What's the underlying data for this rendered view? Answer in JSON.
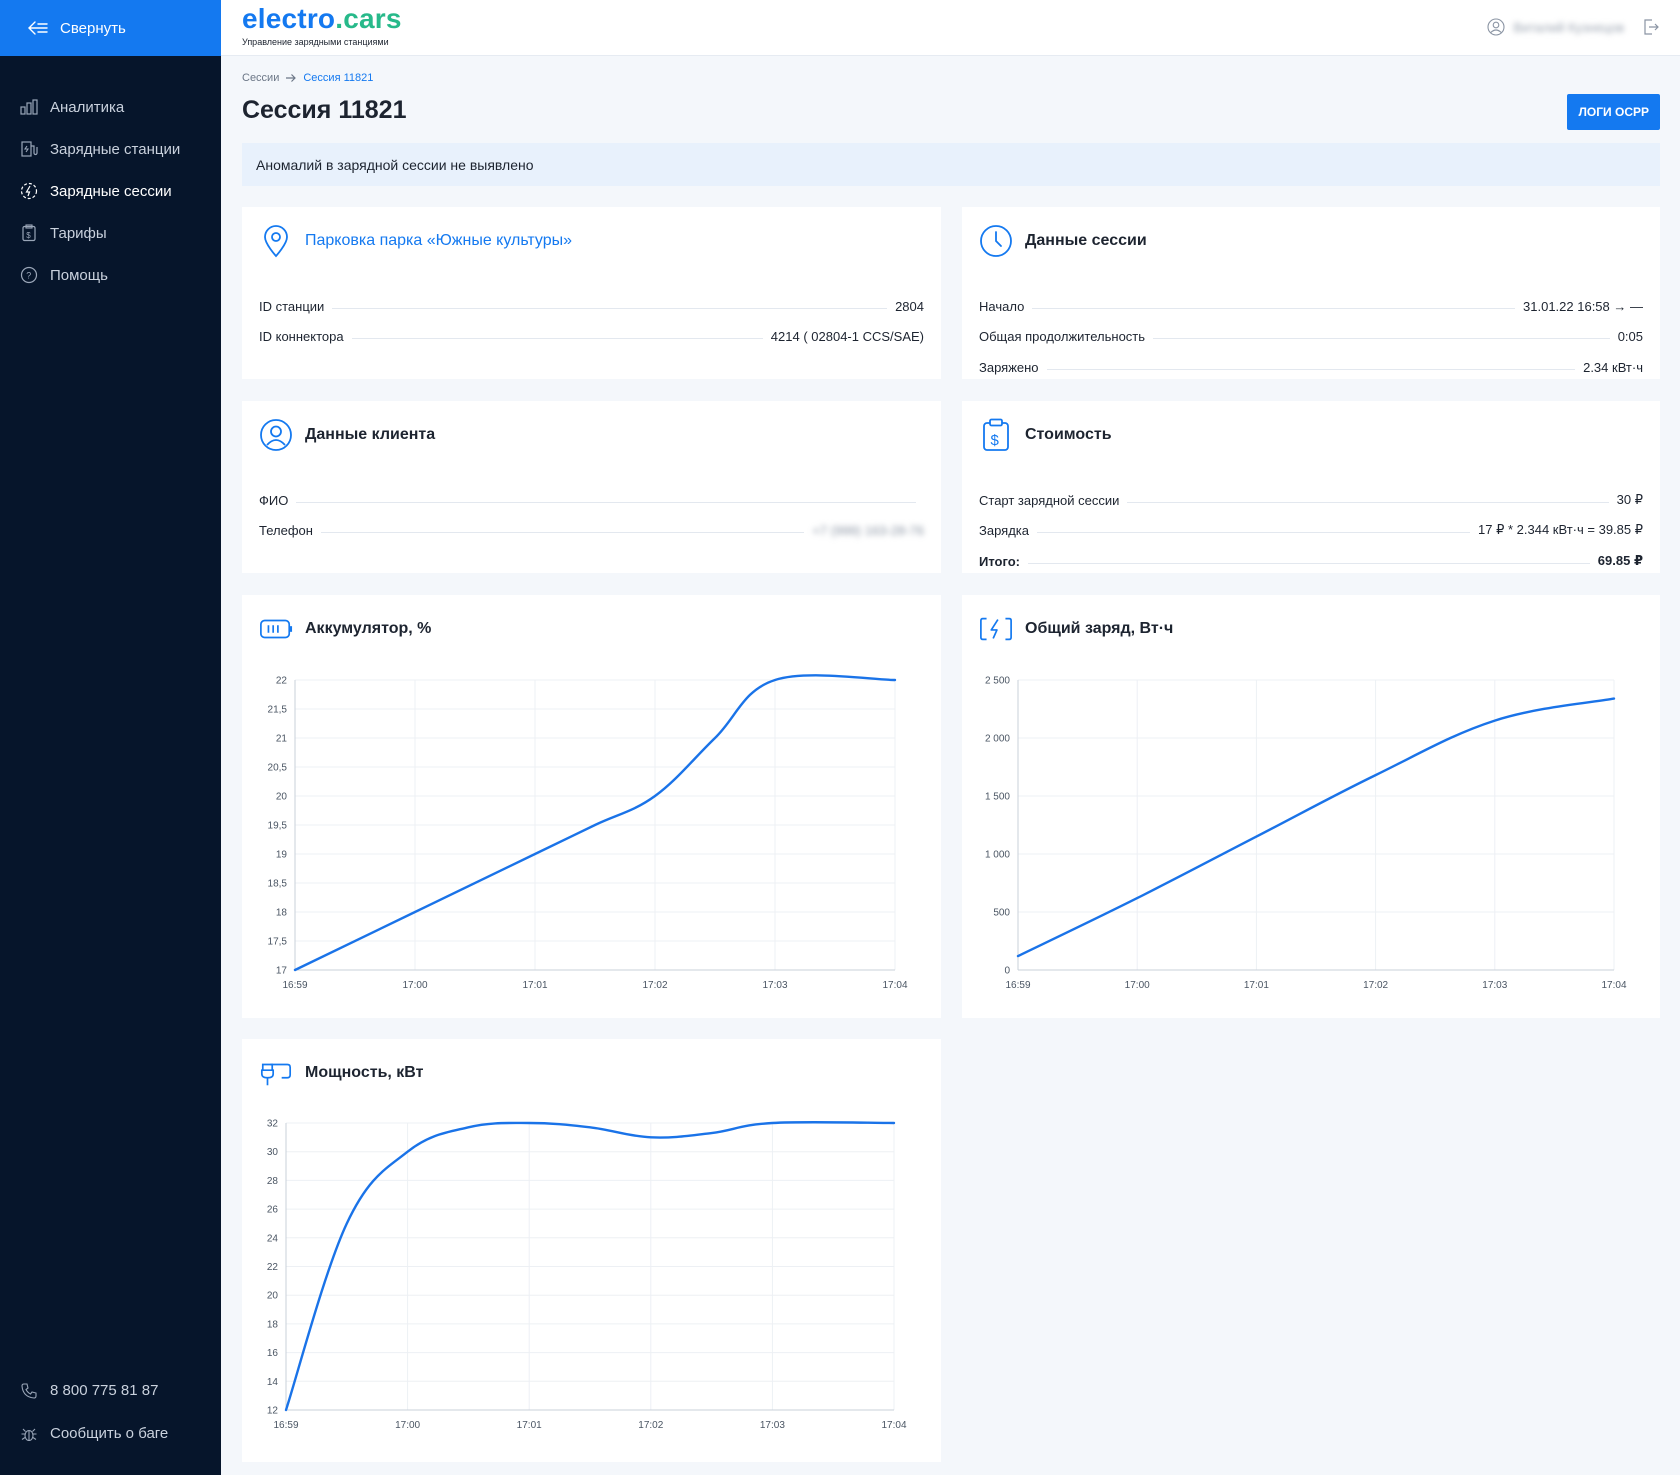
{
  "sidebar": {
    "collapse_label": "Свернуть",
    "items": [
      {
        "label": "Аналитика",
        "icon": "bar-chart-icon",
        "active": false
      },
      {
        "label": "Зарядные станции",
        "icon": "station-icon",
        "active": false
      },
      {
        "label": "Зарядные сессии",
        "icon": "session-icon",
        "active": true
      },
      {
        "label": "Тарифы",
        "icon": "tariff-icon",
        "active": false
      },
      {
        "label": "Помощь",
        "icon": "help-icon",
        "active": false
      }
    ],
    "phone": "8 800 775 81 87",
    "report_bug": "Сообщить о баге"
  },
  "header": {
    "logo_part1": "electro",
    "logo_part2": ".cars",
    "logo_subtitle": "Управление зарядными станциями",
    "user_name": "Виталий Кузнецов"
  },
  "breadcrumb": {
    "parent": "Сессии",
    "current": "Сессия 11821"
  },
  "page_title": "Сессия 11821",
  "ocpp_button": "ЛОГИ OCPP",
  "alert": "Аномалий в зарядной сессии не выявлено",
  "station_card": {
    "title": "Парковка парка «Южные культуры»",
    "rows": [
      {
        "label": "ID станции",
        "value": "2804"
      },
      {
        "label": "ID коннектора",
        "value": "4214 ( 02804-1 CCS/SAE)"
      }
    ]
  },
  "session_card": {
    "title": "Данные сессии",
    "rows": [
      {
        "label": "Начало",
        "value": "31.01.22 16:58 → —"
      },
      {
        "label": "Общая продолжительность",
        "value": "0:05"
      },
      {
        "label": "Заряжено",
        "value": "2.34 кВт·ч"
      }
    ]
  },
  "client_card": {
    "title": "Данные клиента",
    "rows": [
      {
        "label": "ФИО",
        "value": ""
      },
      {
        "label": "Телефон",
        "value": "+7 (999) 163-28-76"
      }
    ]
  },
  "cost_card": {
    "title": "Стоимость",
    "rows": [
      {
        "label": "Старт зарядной сессии",
        "value": "30 ₽"
      },
      {
        "label": "Зарядка",
        "value": "17 ₽ * 2.344 кВт·ч = 39.85 ₽"
      },
      {
        "label": "Итого:",
        "value": "69.85 ₽"
      }
    ]
  },
  "colors": {
    "accent": "#1479f0",
    "sidebar_bg": "#06152b",
    "logo_green": "#27b98a",
    "line": "#1a73e8"
  },
  "chart_data": [
    {
      "type": "line",
      "title": "Аккумулятор, %",
      "x": [
        "16:59",
        "17:00",
        "17:01",
        "17:02",
        "17:03",
        "17:04"
      ],
      "xlim": [
        "16:59",
        "17:04"
      ],
      "ylim": [
        17,
        22
      ],
      "y_ticks": [
        "22",
        "21,5",
        "21",
        "20,5",
        "20",
        "19,5",
        "19",
        "18,5",
        "18",
        "17,5",
        "17"
      ],
      "series": [
        {
          "points": [
            [
              "16:59",
              17.0
            ],
            [
              "17:00",
              18.0
            ],
            [
              "17:01",
              19.0
            ],
            [
              "17:01:30",
              19.5
            ],
            [
              "17:02",
              20.0
            ],
            [
              "17:02:30",
              21.0
            ],
            [
              "17:03",
              22.0
            ],
            [
              "17:04",
              22.0
            ]
          ]
        }
      ]
    },
    {
      "type": "line",
      "title": "Общий заряд, Вт·ч",
      "x": [
        "16:59",
        "17:00",
        "17:01",
        "17:02",
        "17:03",
        "17:04"
      ],
      "xlim": [
        "16:59",
        "17:04"
      ],
      "ylim": [
        0,
        2500
      ],
      "y_ticks": [
        "2 500",
        "2 000",
        "1 500",
        "1 000",
        "500",
        "0"
      ],
      "series": [
        {
          "points": [
            [
              "16:59",
              120
            ],
            [
              "17:00",
              620
            ],
            [
              "17:01",
              1150
            ],
            [
              "17:02",
              1680
            ],
            [
              "17:03",
              2150
            ],
            [
              "17:04",
              2340
            ]
          ]
        }
      ]
    },
    {
      "type": "line",
      "title": "Мощность, кВт",
      "x": [
        "16:59",
        "17:00",
        "17:01",
        "17:02",
        "17:03",
        "17:04"
      ],
      "xlim": [
        "16:59",
        "17:04"
      ],
      "ylim": [
        12,
        32
      ],
      "y_ticks": [
        "32",
        "30",
        "28",
        "26",
        "24",
        "22",
        "20",
        "18",
        "16",
        "14",
        "12"
      ],
      "series": [
        {
          "points": [
            [
              "16:59",
              12.0
            ],
            [
              "16:59:30",
              25.0
            ],
            [
              "17:00",
              30.0
            ],
            [
              "17:00:30",
              31.7
            ],
            [
              "17:01",
              32.0
            ],
            [
              "17:01:30",
              31.7
            ],
            [
              "17:02",
              31.0
            ],
            [
              "17:02:30",
              31.3
            ],
            [
              "17:03",
              32.0
            ],
            [
              "17:04",
              32.0
            ]
          ]
        }
      ]
    }
  ]
}
